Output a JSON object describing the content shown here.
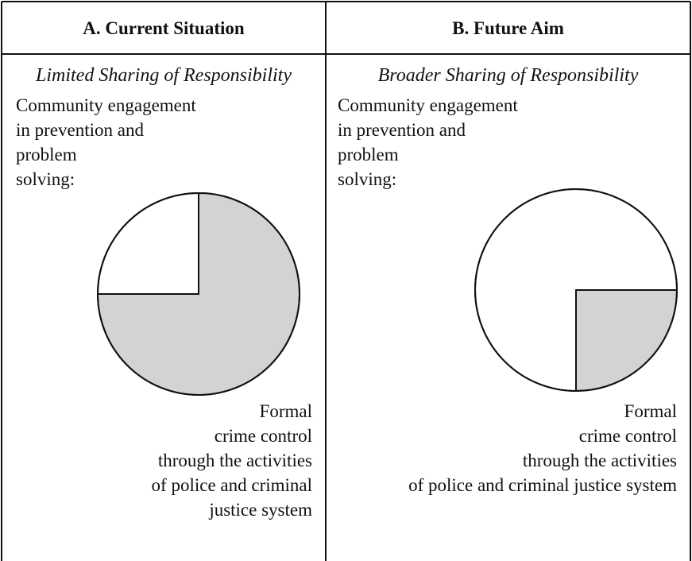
{
  "chart_data": [
    {
      "type": "pie",
      "header": "A.  Current Situation",
      "title": "Limited Sharing of Responsibility",
      "categories": [
        "Community engagement\nin prevention and\nproblem\nsolving:",
        "Formal\ncrime control\nthrough the activities\nof police and criminal\njustice system"
      ],
      "values": [
        25,
        75
      ],
      "colors": [
        "#ffffff",
        "#d3d3d3"
      ],
      "start_angle": 270
    },
    {
      "type": "pie",
      "header": "B.  Future Aim",
      "title": "Broader Sharing of Responsibility",
      "categories": [
        "Community engagement\nin prevention and\nproblem\nsolving:",
        "Formal\ncrime control\nthrough the activities\nof police and criminal justice system"
      ],
      "values": [
        75,
        25
      ],
      "colors": [
        "#ffffff",
        "#d3d3d3"
      ],
      "start_angle": 180
    }
  ]
}
